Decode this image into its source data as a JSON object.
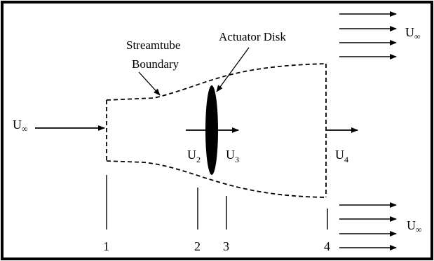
{
  "labels": {
    "streamtube_line1": "Streamtube",
    "streamtube_line2": "Boundary",
    "actuator_disk": "Actuator Disk",
    "u_inf_main": "U",
    "u_inf_main_sub": "∞",
    "u_inf_top": "U",
    "u_inf_top_sub": "∞",
    "u_inf_bottom": "U",
    "u_inf_bottom_sub": "∞",
    "u2_main": "U",
    "u2_sub": "2",
    "u3_main": "U",
    "u3_sub": "3",
    "u4_main": "U",
    "u4_sub": "4"
  },
  "stations": [
    "1",
    "2",
    "3",
    "4"
  ],
  "colors": {
    "ink": "#000000",
    "background": "#ffffff"
  }
}
